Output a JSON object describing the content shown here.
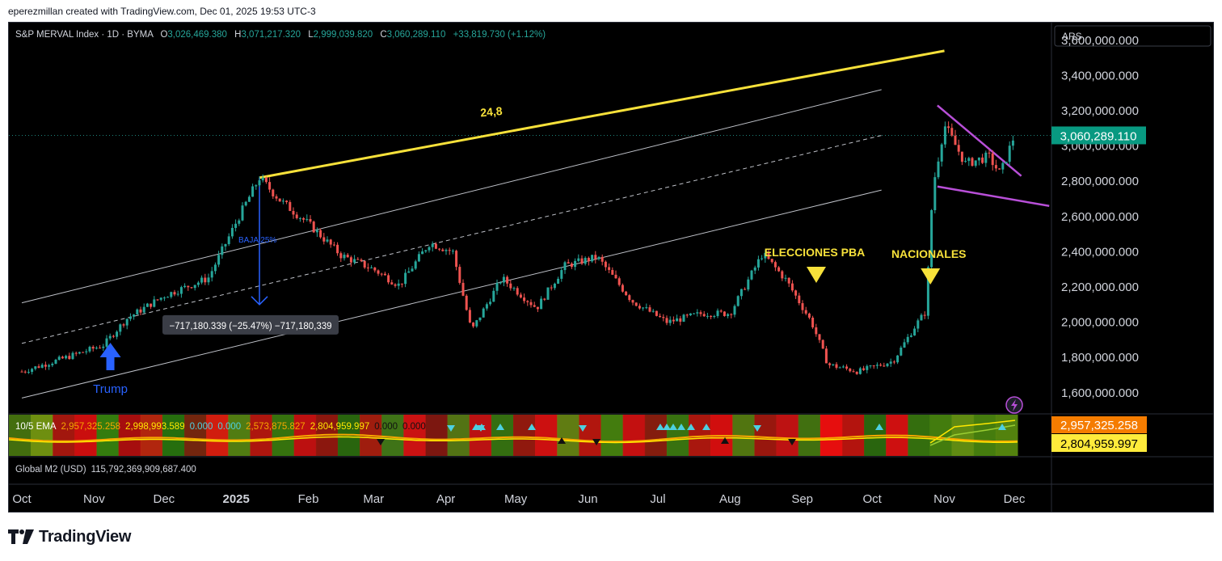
{
  "header": {
    "credit": "eperezmillan created with TradingView.com, Dec 01, 2025 19:53 UTC-3"
  },
  "footer": {
    "brand": "TradingView",
    "logo_icon": "tradingview-logo-icon"
  },
  "symbol": {
    "name": "S&P MERVAL Index · 1D · BYMA",
    "o_label": "O",
    "o": "3,026,469.380",
    "h_label": "H",
    "h": "3,071,217.320",
    "l_label": "L",
    "l": "2,999,039.820",
    "c_label": "C",
    "c": "3,060,289.110",
    "change": "+33,819.730 (+1.12%)"
  },
  "currency": "ARS",
  "price_badge": "3,060,289.110",
  "colors": {
    "up": "#26a69a",
    "down": "#ef5350",
    "accent_yellow": "#f7e13a",
    "purple": "#b84fd8",
    "blue": "#2962ff"
  },
  "chart_data": {
    "type": "candlestick",
    "title": "S&P MERVAL Index · 1D · BYMA",
    "y_axis": {
      "ticks": [
        "3,600,000.000",
        "3,400,000.000",
        "3,200,000.000",
        "3,000,000.000",
        "2,800,000.000",
        "2,600,000.000",
        "2,400,000.000",
        "2,200,000.000",
        "2,000,000.000",
        "1,800,000.000",
        "1,600,000.000"
      ],
      "range": [
        1480000,
        3700000
      ]
    },
    "x_axis": {
      "labels": [
        {
          "text": "Oct",
          "bold": false
        },
        {
          "text": "Nov",
          "bold": false
        },
        {
          "text": "Dec",
          "bold": false
        },
        {
          "text": "2025",
          "bold": true
        },
        {
          "text": "Feb",
          "bold": false
        },
        {
          "text": "Mar",
          "bold": false
        },
        {
          "text": "Apr",
          "bold": false
        },
        {
          "text": "May",
          "bold": false
        },
        {
          "text": "Jun",
          "bold": false
        },
        {
          "text": "Jul",
          "bold": false
        },
        {
          "text": "Aug",
          "bold": false
        },
        {
          "text": "Sep",
          "bold": false
        },
        {
          "text": "Oct",
          "bold": false
        },
        {
          "text": "Nov",
          "bold": false
        },
        {
          "text": "Dec",
          "bold": false
        }
      ]
    },
    "series_path": [
      [
        "2024-10-01",
        1720000
      ],
      [
        "2024-10-20",
        1800000
      ],
      [
        "2024-11-05",
        1870000
      ],
      [
        "2024-11-15",
        2020000
      ],
      [
        "2024-12-01",
        2150000
      ],
      [
        "2024-12-20",
        2250000
      ],
      [
        "2025-01-03",
        2620000
      ],
      [
        "2025-01-11",
        2820000
      ],
      [
        "2025-01-20",
        2690000
      ],
      [
        "2025-02-01",
        2560000
      ],
      [
        "2025-02-15",
        2380000
      ],
      [
        "2025-03-01",
        2300000
      ],
      [
        "2025-03-12",
        2210000
      ],
      [
        "2025-03-25",
        2450000
      ],
      [
        "2025-04-04",
        2400000
      ],
      [
        "2025-04-12",
        1950000
      ],
      [
        "2025-04-25",
        2250000
      ],
      [
        "2025-05-10",
        2080000
      ],
      [
        "2025-05-22",
        2320000
      ],
      [
        "2025-06-05",
        2370000
      ],
      [
        "2025-06-20",
        2120000
      ],
      [
        "2025-07-05",
        2000000
      ],
      [
        "2025-07-20",
        2050000
      ],
      [
        "2025-08-01",
        2050000
      ],
      [
        "2025-08-15",
        2390000
      ],
      [
        "2025-08-25",
        2240000
      ],
      [
        "2025-09-05",
        2000000
      ],
      [
        "2025-09-12",
        1760000
      ],
      [
        "2025-09-25",
        1720000
      ],
      [
        "2025-10-10",
        1780000
      ],
      [
        "2025-10-20",
        1990000
      ],
      [
        "2025-10-24",
        2060000
      ],
      [
        "2025-10-27",
        2760000
      ],
      [
        "2025-11-01",
        3120000
      ],
      [
        "2025-11-10",
        2900000
      ],
      [
        "2025-11-20",
        2940000
      ],
      [
        "2025-11-25",
        2840000
      ],
      [
        "2025-12-01",
        3060000
      ]
    ],
    "overlays": {
      "yellow_trendline": {
        "from": [
          "2025-01-11",
          2820000
        ],
        "to": [
          "2025-11-01",
          3540000
        ]
      },
      "channel_upper": {
        "from": [
          "2024-10-01",
          2110000
        ],
        "to": [
          "2025-10-05",
          3320000
        ]
      },
      "channel_mid": {
        "from": [
          "2024-10-01",
          1880000
        ],
        "to": [
          "2025-10-05",
          3060000
        ]
      },
      "channel_lower": {
        "from": [
          "2024-10-01",
          1570000
        ],
        "to": [
          "2025-10-05",
          2750000
        ]
      },
      "wedge_top": {
        "from": [
          "2025-10-29",
          3230000
        ],
        "to": [
          "2025-12-04",
          2830000
        ]
      },
      "wedge_bottom": {
        "from": [
          "2025-10-29",
          2770000
        ],
        "to": [
          "2025-12-16",
          2660000
        ]
      },
      "measure": {
        "x": "2025-01-11",
        "from": 2820000,
        "to": 2100000
      }
    },
    "annotations": {
      "trendline_label": "24,8",
      "measure_label": "BAJA 25%",
      "measure_box": "−717,180.339 (−25.47%) −717,180,339",
      "trump": "Trump",
      "elecciones": "ELECCIONES PBA",
      "nacionales": "NACIONALES"
    },
    "indicator": {
      "legend_name": "10/5 EMA",
      "values": [
        "2,957,325.258",
        "2,998,993.589",
        "0.000",
        "0.000",
        "2,573,875.827",
        "2,804,959.997",
        "0.000",
        "0.000"
      ],
      "badge_top": "2,957,325.258",
      "badge_bottom": "2,804,959.997"
    },
    "m2": {
      "label": "Global M2 (USD)",
      "value": "115,792,369,909,687.400"
    }
  }
}
